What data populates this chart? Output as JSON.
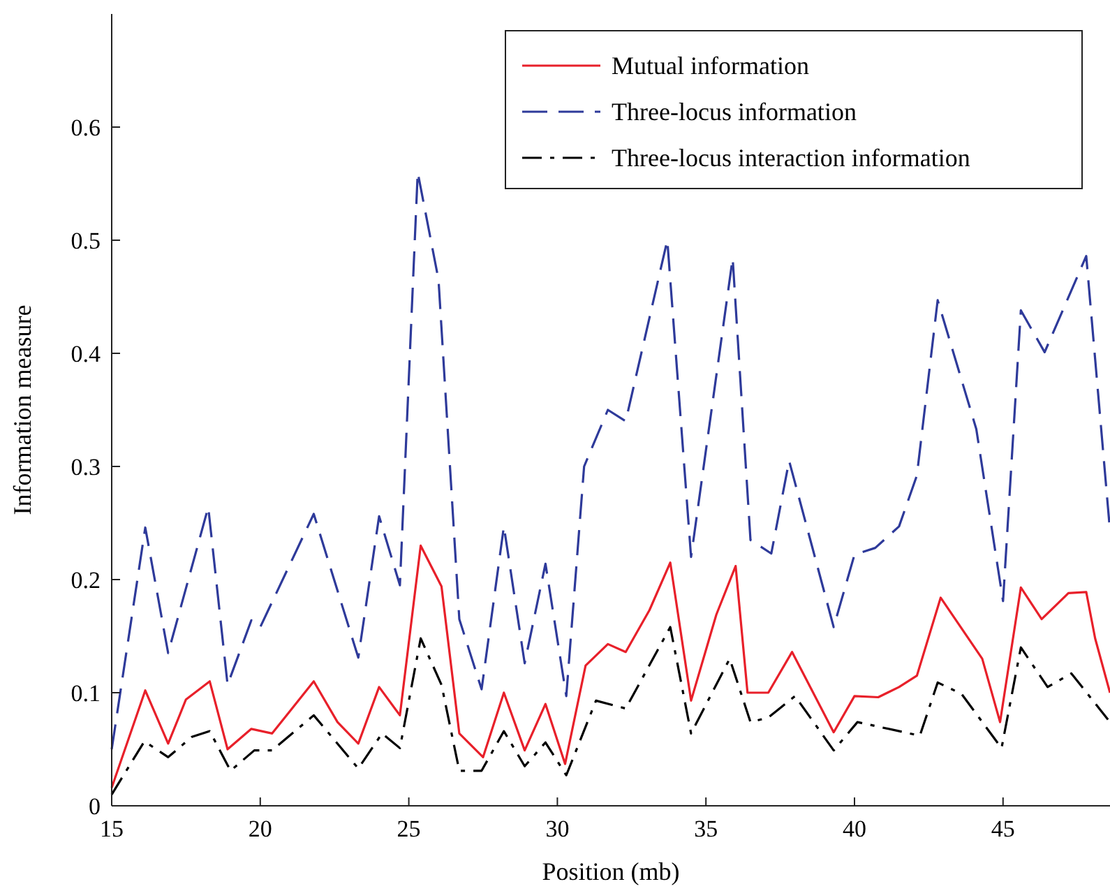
{
  "chart_data": {
    "type": "line",
    "xlabel": "Position (mb)",
    "ylabel": "Information measure",
    "xlim": [
      15,
      48.6
    ],
    "xticks": [
      15,
      20,
      25,
      30,
      35,
      40,
      45
    ],
    "ylim": [
      0,
      0.7
    ],
    "yticks": [
      0,
      0.1,
      0.2,
      0.3,
      0.4,
      0.5,
      0.6
    ],
    "grid": false,
    "legend": "top right",
    "marker": "none",
    "series": [
      {
        "name": "Mutual information",
        "color": "#e8202a",
        "line_style": "solid",
        "x": [
          15,
          16.13,
          16.9,
          17.5,
          18.3,
          18.9,
          19.7,
          20.4,
          21.8,
          22.6,
          23.3,
          24.0,
          24.7,
          25.4,
          26.1,
          26.7,
          27.5,
          28.2,
          28.9,
          29.6,
          30.26,
          30.95,
          31.7,
          32.3,
          33.1,
          33.8,
          34.5,
          35.35,
          36.0,
          36.4,
          37.1,
          37.9,
          39.3,
          40.0,
          40.8,
          41.5,
          42.1,
          42.9,
          44.3,
          44.9,
          45.6,
          46.3,
          47.2,
          47.8,
          48.1,
          48.6
        ],
        "values": [
          0.016,
          0.102,
          0.055,
          0.094,
          0.11,
          0.05,
          0.068,
          0.064,
          0.11,
          0.074,
          0.055,
          0.105,
          0.08,
          0.23,
          0.194,
          0.064,
          0.043,
          0.1,
          0.049,
          0.09,
          0.037,
          0.124,
          0.143,
          0.136,
          0.173,
          0.215,
          0.093,
          0.169,
          0.212,
          0.1,
          0.1,
          0.136,
          0.065,
          0.097,
          0.096,
          0.105,
          0.115,
          0.184,
          0.13,
          0.074,
          0.193,
          0.165,
          0.188,
          0.189,
          0.148,
          0.1
        ]
      },
      {
        "name": "Three-locus information",
        "color": "#2e3a9a",
        "line_style": "dashed",
        "x": [
          15,
          16.13,
          16.9,
          18.25,
          18.9,
          19.7,
          20.0,
          21.8,
          23.3,
          24.0,
          24.7,
          25.3,
          26.0,
          26.7,
          27.45,
          28.2,
          28.9,
          29.6,
          30.3,
          30.9,
          31.7,
          32.3,
          33.7,
          34.5,
          35.9,
          36.5,
          37.2,
          37.8,
          39.3,
          40.0,
          40.7,
          41.5,
          42.1,
          42.8,
          44.1,
          45.0,
          45.6,
          46.4,
          47.8,
          48.6
        ],
        "values": [
          0.05,
          0.246,
          0.135,
          0.264,
          0.107,
          0.164,
          0.158,
          0.258,
          0.131,
          0.256,
          0.195,
          0.56,
          0.465,
          0.165,
          0.103,
          0.247,
          0.126,
          0.214,
          0.097,
          0.3,
          0.35,
          0.34,
          0.5,
          0.22,
          0.484,
          0.235,
          0.223,
          0.305,
          0.158,
          0.222,
          0.228,
          0.247,
          0.292,
          0.447,
          0.333,
          0.181,
          0.438,
          0.401,
          0.486,
          0.243
        ]
      },
      {
        "name": "Three-locus interaction information",
        "color": "#000000",
        "line_style": "dashdot",
        "x": [
          15,
          16.1,
          16.9,
          17.7,
          18.3,
          19.0,
          19.8,
          20.4,
          21.8,
          23.3,
          24.1,
          24.7,
          25.4,
          26.1,
          26.7,
          27.45,
          28.2,
          28.9,
          29.6,
          30.3,
          31.3,
          32.3,
          33.8,
          34.5,
          35.8,
          36.5,
          37.1,
          38.0,
          39.3,
          40.1,
          42.2,
          42.8,
          43.6,
          44.95,
          45.6,
          46.5,
          47.3,
          48.6
        ],
        "values": [
          0.01,
          0.057,
          0.043,
          0.061,
          0.066,
          0.031,
          0.049,
          0.049,
          0.08,
          0.033,
          0.064,
          0.051,
          0.148,
          0.107,
          0.031,
          0.031,
          0.066,
          0.035,
          0.056,
          0.027,
          0.093,
          0.086,
          0.158,
          0.064,
          0.13,
          0.074,
          0.078,
          0.097,
          0.049,
          0.074,
          0.062,
          0.109,
          0.099,
          0.051,
          0.14,
          0.105,
          0.117,
          0.074
        ]
      }
    ]
  }
}
